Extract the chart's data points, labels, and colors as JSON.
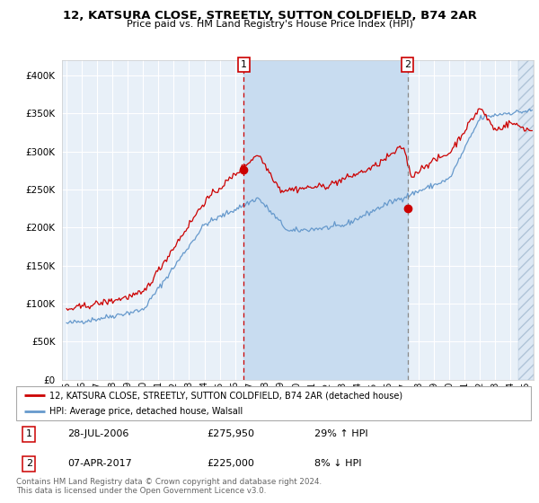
{
  "title": "12, KATSURA CLOSE, STREETLY, SUTTON COLDFIELD, B74 2AR",
  "subtitle": "Price paid vs. HM Land Registry's House Price Index (HPI)",
  "legend_line1": "12, KATSURA CLOSE, STREETLY, SUTTON COLDFIELD, B74 2AR (detached house)",
  "legend_line2": "HPI: Average price, detached house, Walsall",
  "marker1_date": "28-JUL-2006",
  "marker1_price": "£275,950",
  "marker1_hpi": "29% ↑ HPI",
  "marker2_date": "07-APR-2017",
  "marker2_price": "£225,000",
  "marker2_hpi": "8% ↓ HPI",
  "footer": "Contains HM Land Registry data © Crown copyright and database right 2024.\nThis data is licensed under the Open Government Licence v3.0.",
  "red_color": "#cc0000",
  "blue_color": "#6699cc",
  "bg_color": "#e8f0f8",
  "bg_color_between": "#d0e4f4",
  "grid_color": "#ffffff",
  "ylim": [
    0,
    420000
  ],
  "yticks": [
    0,
    50000,
    100000,
    150000,
    200000,
    250000,
    300000,
    350000,
    400000
  ],
  "marker1_x_year": 2006.57,
  "marker2_x_year": 2017.27,
  "shade_start_year": 2024.5,
  "xlim_left": 1994.7,
  "xlim_right": 2025.5
}
